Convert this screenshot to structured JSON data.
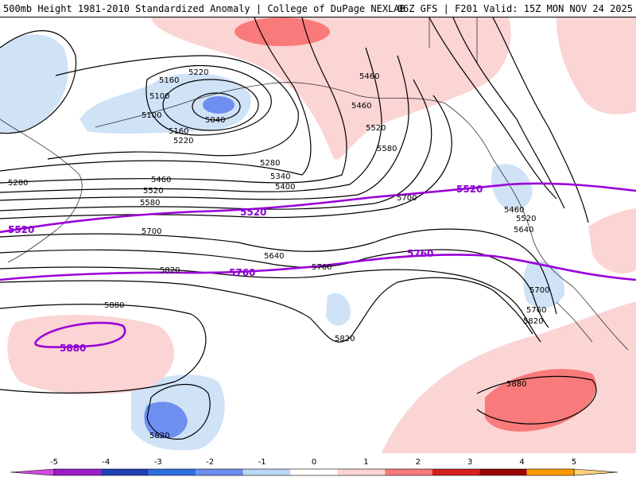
{
  "header": {
    "title_left": "500mb Height 1981-2010 Standardized Anomaly | College of DuPage NEXLAB",
    "title_right": "06Z GFS | F201 Valid: 15Z MON NOV 24 2025"
  },
  "map": {
    "region": "North Pacific and western North America",
    "anomaly_palette": {
      "neg_weak": "#cfe2f6",
      "neg_moderate": "#6e8ff0",
      "pos_weak": "#fbd4d4",
      "pos_moderate": "#f97a7a",
      "contour_color": "#000000",
      "highlight_color": "#9b00d8"
    },
    "contour_labels": {
      "c5220a": "5220",
      "c5160a": "5160",
      "c5100a": "5100",
      "c5100b": "5100",
      "c5040": "5040",
      "c5160b": "5160",
      "c5220b": "5220",
      "c5280a": "5280",
      "c5340": "5340",
      "c5400": "5400",
      "c5460a": "5460",
      "c5520a": "5520",
      "c5580a": "5580",
      "c5280b": "5280",
      "c5460b": "5460",
      "c5460c": "5460",
      "c5520b": "5520",
      "c5580b": "5580",
      "c5700a": "5700",
      "c5640a": "5640",
      "c5760a": "5760",
      "c5820a": "5820",
      "c5880a": "5880",
      "c5700b": "5700",
      "c5820b": "5820",
      "c5460d": "5460",
      "c5520c": "5520",
      "c5640b": "5640",
      "c5700c": "5700",
      "c5760b": "5760",
      "c5820c": "5820",
      "c5880b": "5880",
      "c5820d": "5820"
    },
    "highlight_labels": {
      "h5520a": "5520",
      "h5520b": "5520",
      "h5520c": "5520",
      "h5760a": "5760",
      "h5760b": "5760",
      "h5880": "5880"
    }
  },
  "colorbar": {
    "ticks": [
      "-5",
      "-4",
      "-3",
      "-2",
      "-1",
      "0",
      "1",
      "2",
      "3",
      "4",
      "5"
    ],
    "colors": [
      "#d24be0",
      "#9a1cc8",
      "#1f3fb3",
      "#2f6ee0",
      "#6e8ff0",
      "#bcd6f4",
      "#ffffff",
      "#fbd4d4",
      "#f97a7a",
      "#d62020",
      "#9a0000",
      "#ff9a00",
      "#ffd27a"
    ]
  }
}
